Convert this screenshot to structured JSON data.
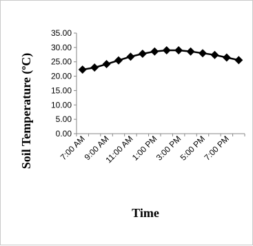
{
  "chart_data": {
    "type": "line",
    "title": "",
    "xlabel": "Time",
    "ylabel": "Soil Temperature (ºC)",
    "ylim": [
      0,
      35
    ],
    "y_ticks": [
      "0.00",
      "5.00",
      "10.00",
      "15.00",
      "20.00",
      "25.00",
      "30.00",
      "35.00"
    ],
    "x_tick_labels": [
      "7:00 AM",
      "9:00 AM",
      "11:00 AM",
      "1:00 PM",
      "3:00 PM",
      "5:00 PM",
      "7:00 PM"
    ],
    "x": [
      "7:00 AM",
      "8:00 AM",
      "9:00 AM",
      "10:00 AM",
      "11:00 AM",
      "12:00 PM",
      "1:00 PM",
      "2:00 PM",
      "3:00 PM",
      "4:00 PM",
      "5:00 PM",
      "6:00 PM",
      "7:00 PM",
      "8:00 PM"
    ],
    "series": [
      {
        "values": [
          22.3,
          23.0,
          24.2,
          25.5,
          26.8,
          27.8,
          28.6,
          29.0,
          29.0,
          28.6,
          28.0,
          27.4,
          26.5,
          25.6
        ]
      }
    ],
    "grid": false,
    "legend": "none",
    "colors": {
      "line": "#000000",
      "marker": "#000000",
      "axis": "#868686"
    }
  }
}
